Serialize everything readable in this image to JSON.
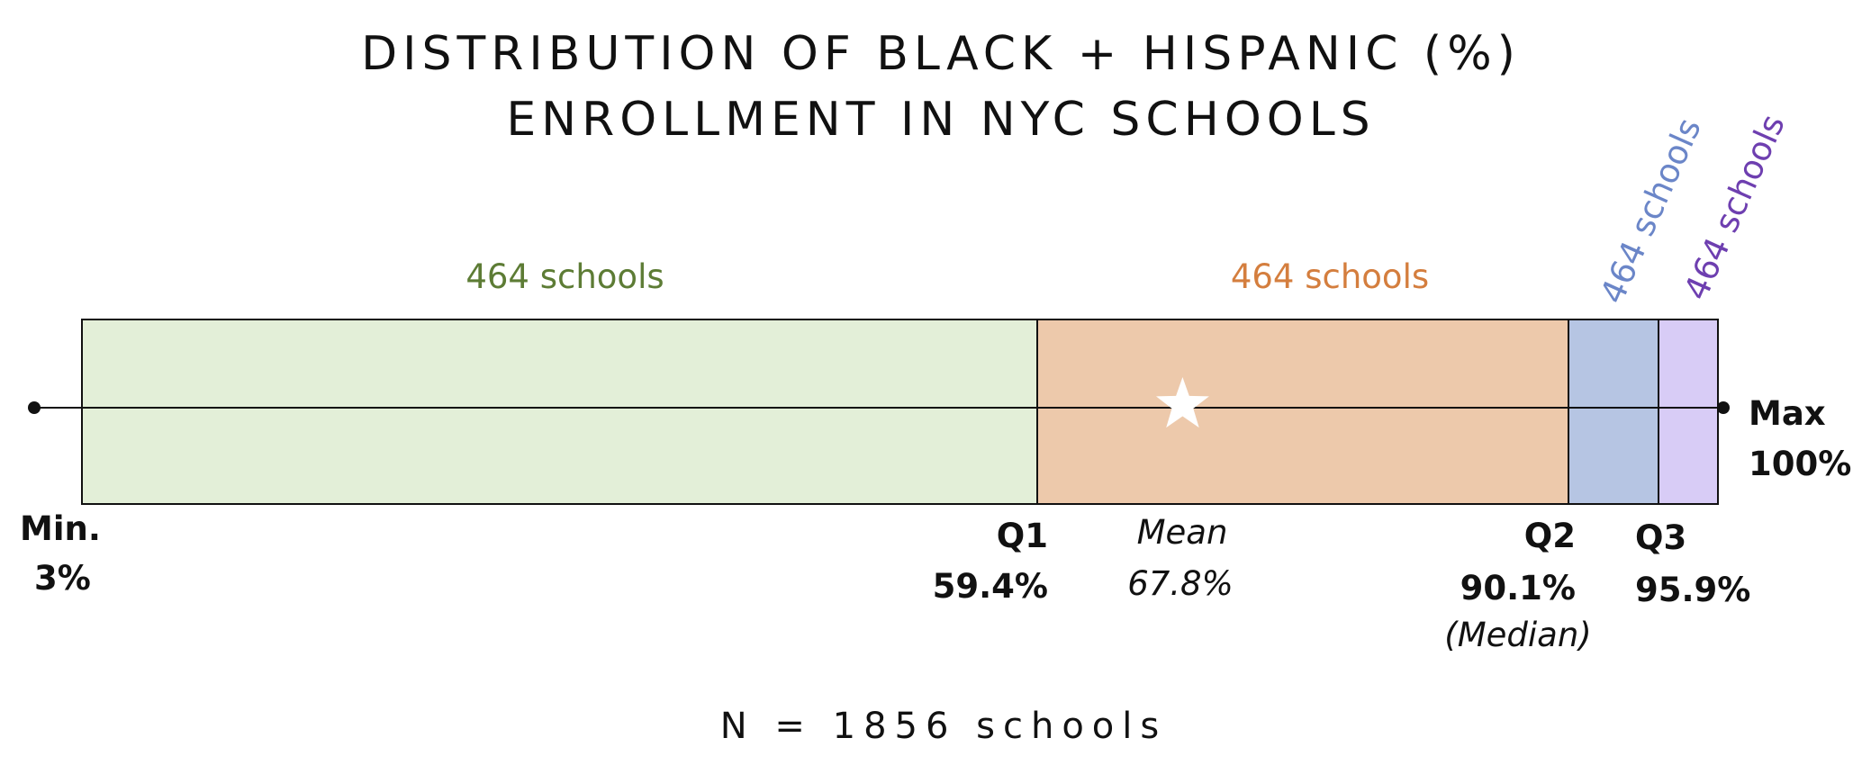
{
  "chart_data": {
    "type": "box",
    "title_lines": [
      "DISTRIBUTION OF BLACK + HISPANIC (%)",
      "ENROLLMENT IN NYC SCHOOLS"
    ],
    "unit": "%",
    "stats": {
      "min": 3,
      "q1": 59.4,
      "mean": 67.8,
      "q2": 90.1,
      "q3": 95.9,
      "max": 100
    },
    "bands": [
      {
        "from": 3,
        "to": 59.4,
        "count_label": "464 schools",
        "fill": "#e3efd8",
        "text_color": "#5d7c35"
      },
      {
        "from": 59.4,
        "to": 90.1,
        "count_label": "464 schools",
        "fill": "#edc9ab",
        "text_color": "#d47e3e"
      },
      {
        "from": 90.1,
        "to": 95.9,
        "count_label": "464 schools",
        "fill": "#b6c5e3",
        "text_color": "#6b86c8"
      },
      {
        "from": 95.9,
        "to": 100,
        "count_label": "464 schools",
        "fill": "#d8ccf6",
        "text_color": "#6e3fb0"
      }
    ],
    "labels": {
      "min": {
        "name": "Min.",
        "value": "3%"
      },
      "q1": {
        "name": "Q1",
        "value": "59.4%"
      },
      "mean": {
        "name": "Mean",
        "value": "67.8%"
      },
      "q2": {
        "name": "Q2",
        "value": "90.1%",
        "note": "(Median)"
      },
      "q3": {
        "name": "Q3",
        "value": "95.9%"
      },
      "max": {
        "name": "Max",
        "value": "100%"
      }
    },
    "footnote": "N = 1856 schools",
    "mean_marker": "star-icon"
  }
}
